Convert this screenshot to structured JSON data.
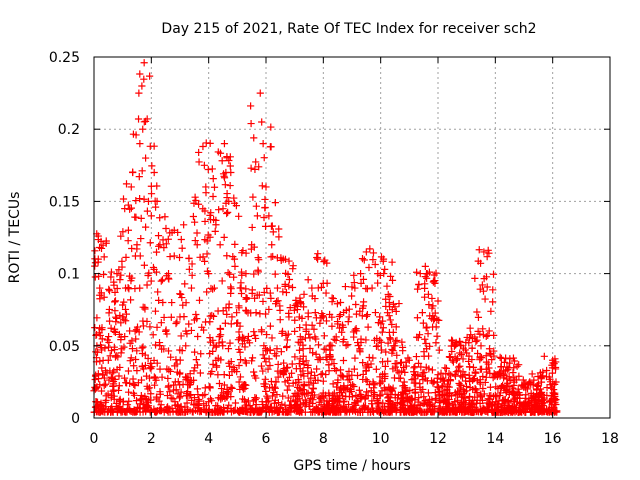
{
  "chart_data": {
    "type": "scatter",
    "title": "Day 215 of 2021, Rate Of TEC Index for receiver sch2",
    "xlabel": "GPS time / hours",
    "ylabel": "ROTI / TECUs",
    "xlim": [
      0,
      18
    ],
    "ylim": [
      0,
      0.25
    ],
    "grid": true,
    "marker": "+",
    "color": "#ff0000",
    "x_ticks": [
      0,
      2,
      4,
      6,
      8,
      10,
      12,
      14,
      16,
      18
    ],
    "x_tick_labels": [
      "0",
      "2",
      "4",
      "6",
      "8",
      "10",
      "12",
      "14",
      "16",
      "18"
    ],
    "y_ticks": [
      0,
      0.05,
      0.1,
      0.15,
      0.2,
      0.25
    ],
    "y_tick_labels": [
      "0",
      "0.05",
      "0.1",
      "0.15",
      "0.2",
      "0.25"
    ],
    "series": [
      {
        "name": "ROTI",
        "points": [
          [
            0.05,
            0.02
          ],
          [
            0.1,
            0.05
          ],
          [
            0.15,
            0.11
          ],
          [
            0.2,
            0.09
          ],
          [
            0.15,
            0.126
          ],
          [
            0.2,
            0.085
          ],
          [
            0.3,
            0.03
          ],
          [
            0.5,
            0.04
          ],
          [
            0.7,
            0.06
          ],
          [
            0.8,
            0.1
          ],
          [
            0.9,
            0.035
          ],
          [
            1.0,
            0.07
          ],
          [
            1.1,
            0.09
          ],
          [
            1.2,
            0.13
          ],
          [
            1.3,
            0.16
          ],
          [
            1.35,
            0.17
          ],
          [
            1.5,
            0.12
          ],
          [
            1.6,
            0.19
          ],
          [
            1.7,
            0.2
          ],
          [
            1.75,
            0.246
          ],
          [
            1.8,
            0.18
          ],
          [
            1.9,
            0.15
          ],
          [
            2.0,
            0.14
          ],
          [
            2.1,
            0.17
          ],
          [
            2.2,
            0.15
          ],
          [
            2.3,
            0.12
          ],
          [
            2.4,
            0.08
          ],
          [
            2.5,
            0.06
          ],
          [
            2.6,
            0.1
          ],
          [
            2.8,
            0.13
          ],
          [
            3.0,
            0.07
          ],
          [
            3.2,
            0.05
          ],
          [
            3.4,
            0.09
          ],
          [
            3.6,
            0.12
          ],
          [
            3.8,
            0.188
          ],
          [
            3.85,
            0.175
          ],
          [
            3.9,
            0.16
          ],
          [
            4.0,
            0.1
          ],
          [
            4.2,
            0.09
          ],
          [
            4.4,
            0.12
          ],
          [
            4.55,
            0.19
          ],
          [
            4.6,
            0.17
          ],
          [
            4.7,
            0.15
          ],
          [
            4.9,
            0.11
          ],
          [
            5.1,
            0.09
          ],
          [
            5.3,
            0.1
          ],
          [
            5.5,
            0.12
          ],
          [
            5.7,
            0.14
          ],
          [
            5.8,
            0.225
          ],
          [
            5.85,
            0.205
          ],
          [
            5.9,
            0.19
          ],
          [
            6.0,
            0.16
          ],
          [
            6.1,
            0.14
          ],
          [
            6.2,
            0.12
          ],
          [
            6.4,
            0.09
          ],
          [
            6.6,
            0.11
          ],
          [
            6.8,
            0.07
          ],
          [
            7.0,
            0.06
          ],
          [
            7.2,
            0.08
          ],
          [
            7.4,
            0.06
          ],
          [
            7.6,
            0.09
          ],
          [
            7.8,
            0.11
          ],
          [
            8.0,
            0.07
          ],
          [
            8.3,
            0.05
          ],
          [
            8.6,
            0.08
          ],
          [
            8.9,
            0.07
          ],
          [
            9.1,
            0.09
          ],
          [
            9.3,
            0.1
          ],
          [
            9.5,
            0.115
          ],
          [
            9.7,
            0.09
          ],
          [
            9.9,
            0.1
          ],
          [
            10.1,
            0.11
          ],
          [
            10.3,
            0.08
          ],
          [
            10.5,
            0.05
          ],
          [
            10.8,
            0.035
          ],
          [
            11.0,
            0.04
          ],
          [
            11.3,
            0.03
          ],
          [
            11.6,
            0.1
          ],
          [
            11.7,
            0.101
          ],
          [
            12.0,
            0.03
          ],
          [
            12.5,
            0.04
          ],
          [
            12.8,
            0.05
          ],
          [
            13.0,
            0.045
          ],
          [
            13.2,
            0.055
          ],
          [
            13.4,
            0.06
          ],
          [
            13.5,
            0.05
          ],
          [
            13.6,
            0.115
          ],
          [
            14.0,
            0.03
          ],
          [
            14.5,
            0.038
          ],
          [
            14.8,
            0.02
          ],
          [
            15.2,
            0.025
          ],
          [
            15.6,
            0.028
          ],
          [
            16.0,
            0.04
          ],
          [
            16.1,
            0.035
          ]
        ]
      }
    ]
  }
}
